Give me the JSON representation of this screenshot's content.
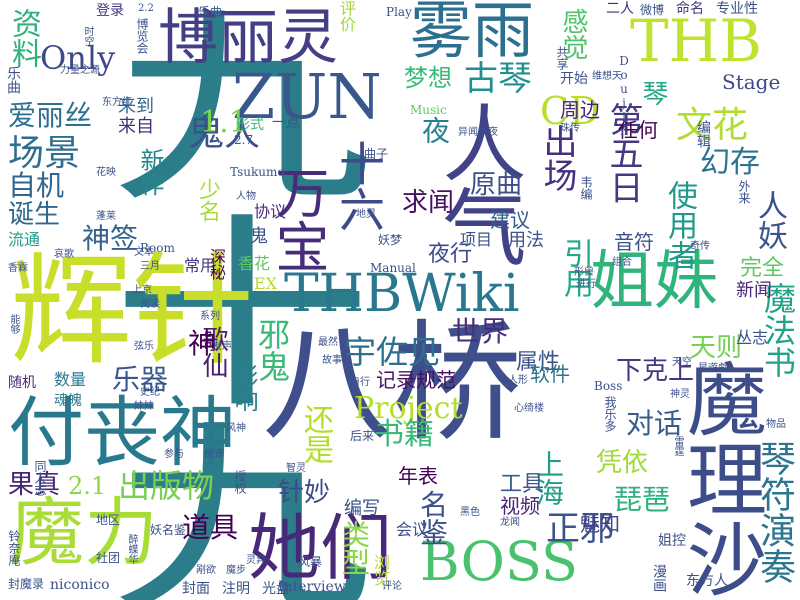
{
  "words": [
    {
      "text": "九十九",
      "color": "#2c7d8a"
    },
    {
      "text": "辉针",
      "color": "#c8de2b"
    },
    {
      "text": "八桥",
      "color": "#3f4f8c"
    },
    {
      "text": "付丧神",
      "color": "#29798e"
    },
    {
      "text": "魔力",
      "color": "#a9dc36"
    },
    {
      "text": "她们",
      "color": "#482878"
    },
    {
      "text": "博丽灵",
      "color": "#433e85"
    },
    {
      "text": "雾雨",
      "color": "#2d6f8e"
    },
    {
      "text": "ZUN",
      "color": "#38588c"
    },
    {
      "text": "THB",
      "color": "#bde32d"
    },
    {
      "text": "THBWiki",
      "color": "#2a788e"
    },
    {
      "text": "姐妹",
      "color": "#2fb47c"
    },
    {
      "text": "魔理沙",
      "color": "#3d4d8a"
    },
    {
      "text": "BOSS",
      "color": "#4ac16d"
    },
    {
      "text": "万宝",
      "color": "#472c7a"
    },
    {
      "text": "十六",
      "color": "#3e4a89"
    },
    {
      "text": "人气",
      "color": "#414287"
    },
    {
      "text": "宇佐见",
      "color": "#2e6e8e"
    },
    {
      "text": "琴",
      "color": "#22a785"
    },
    {
      "text": "Project",
      "color": "#b5de2b"
    },
    {
      "text": "Only",
      "color": "#3f4889"
    },
    {
      "text": "鬼人",
      "color": "#3b518b"
    },
    {
      "text": "邪鬼",
      "color": "#3aba76"
    },
    {
      "text": "资料",
      "color": "#2db27d"
    },
    {
      "text": "感觉",
      "color": "#4ec36b"
    },
    {
      "text": "场景",
      "color": "#2e6d8e"
    },
    {
      "text": "爱丽丝",
      "color": "#2d708e"
    },
    {
      "text": "自机",
      "color": "#31668e"
    },
    {
      "text": "诞生",
      "color": "#30678d"
    },
    {
      "text": "神签",
      "color": "#33628d"
    },
    {
      "text": "新作",
      "color": "#24868e"
    },
    {
      "text": "梦想",
      "color": "#38b977"
    },
    {
      "text": "古琴",
      "color": "#218f8d"
    },
    {
      "text": "CD",
      "color": "#b8de29"
    },
    {
      "text": "文花",
      "color": "#b0dd2f"
    },
    {
      "text": "出场",
      "color": "#46307e"
    },
    {
      "text": "原曲",
      "color": "#3d4e8a"
    },
    {
      "text": "夜",
      "color": "#26818e"
    },
    {
      "text": "求闻",
      "color": "#471063"
    },
    {
      "text": "1.1",
      "color": "#7fd34e"
    },
    {
      "text": "Stage",
      "color": "#3f4788"
    },
    {
      "text": "幻存",
      "color": "#2b748e"
    },
    {
      "text": "第五日",
      "color": "#443983"
    },
    {
      "text": "使用者",
      "color": "#1f998a"
    },
    {
      "text": "人妖",
      "color": "#3a538b"
    },
    {
      "text": "世界",
      "color": "#472d7b"
    },
    {
      "text": "乐器",
      "color": "#39568c"
    },
    {
      "text": "歌仙",
      "color": "#482071"
    },
    {
      "text": "影响",
      "color": "#26828e"
    },
    {
      "text": "还是",
      "color": "#b2dd2d"
    },
    {
      "text": "书籍",
      "color": "#3aba76"
    },
    {
      "text": "出版物",
      "color": "#7ad151"
    },
    {
      "text": "果真",
      "color": "#482677"
    },
    {
      "text": "2.1",
      "color": "#8ed645"
    },
    {
      "text": "针妙",
      "color": "#3e4989"
    },
    {
      "text": "上海",
      "color": "#1f9e89"
    },
    {
      "text": "琵琶",
      "color": "#2db27d"
    },
    {
      "text": "凭依",
      "color": "#a0da39"
    },
    {
      "text": "琴符演奏",
      "color": "#2b758e"
    },
    {
      "text": "名鉴",
      "color": "#3c4f8a"
    },
    {
      "text": "正邪",
      "color": "#3a548c"
    },
    {
      "text": "道具",
      "color": "#440154"
    },
    {
      "text": "天则",
      "color": "#75d054"
    },
    {
      "text": "下克上",
      "color": "#453781"
    },
    {
      "text": "对话",
      "color": "#365c8d"
    },
    {
      "text": "魔法书",
      "color": "#20a386"
    },
    {
      "text": "引用",
      "color": "#22a884"
    },
    {
      "text": "完全",
      "color": "#5ec962"
    },
    {
      "text": "新闻",
      "color": "#472878"
    },
    {
      "text": "属性",
      "color": "#3b528b"
    },
    {
      "text": "软件",
      "color": "#2a768e"
    },
    {
      "text": "记录规范",
      "color": "#470e61"
    },
    {
      "text": "工具",
      "color": "#38598c"
    },
    {
      "text": "视频",
      "color": "#482576"
    },
    {
      "text": "魅知",
      "color": "#424186"
    },
    {
      "text": "年表",
      "color": "#440154"
    },
    {
      "text": "编写",
      "color": "#3b528b"
    },
    {
      "text": "类型",
      "color": "#8bd646"
    },
    {
      "text": "会议",
      "color": "#3e4c8a"
    },
    {
      "text": "浏览",
      "color": "#b5de2b"
    },
    {
      "text": "夜行",
      "color": "#3e4a89"
    },
    {
      "text": "神",
      "color": "#440154"
    },
    {
      "text": "建议",
      "color": "#365c8d"
    },
    {
      "text": "音符",
      "color": "#3b528b"
    },
    {
      "text": "用法",
      "color": "#3b528b"
    },
    {
      "text": "项目",
      "color": "#3b528b"
    },
    {
      "text": "周边",
      "color": "#482677"
    },
    {
      "text": "任何",
      "color": "#440154"
    },
    {
      "text": "开始",
      "color": "#3b528b"
    },
    {
      "text": "形式",
      "color": "#35b779"
    },
    {
      "text": "一点",
      "color": "#3b528b"
    },
    {
      "text": "少名",
      "color": "#a9dc36"
    },
    {
      "text": "协议",
      "color": "#482878"
    },
    {
      "text": "鬼",
      "color": "#3b528b"
    },
    {
      "text": "常用",
      "color": "#443983"
    },
    {
      "text": "香花",
      "color": "#5ec962"
    },
    {
      "text": "EX",
      "color": "#b2dd2d"
    },
    {
      "text": "深秘",
      "color": "#440154"
    },
    {
      "text": "乐曲",
      "color": "#3b528b"
    },
    {
      "text": "来到",
      "color": "#31688e"
    },
    {
      "text": "来自",
      "color": "#46307e"
    },
    {
      "text": "流通",
      "color": "#1f9e89"
    },
    {
      "text": "数量",
      "color": "#2a788e"
    },
    {
      "text": "随机",
      "color": "#482878"
    },
    {
      "text": "魂魄",
      "color": "#2a788e"
    },
    {
      "text": "登录",
      "color": "#443983"
    },
    {
      "text": "评价",
      "color": "#a0da39"
    },
    {
      "text": "Play",
      "color": "#3b528b"
    },
    {
      "text": "二人",
      "color": "#482878"
    },
    {
      "text": "微博",
      "color": "#3b528b"
    },
    {
      "text": "命名",
      "color": "#443983"
    },
    {
      "text": "专业性",
      "color": "#3b528b"
    },
    {
      "text": "Music",
      "color": "#5ec962"
    },
    {
      "text": "曲子",
      "color": "#3b528b"
    },
    {
      "text": "Doujin",
      "color": "#3b528b"
    },
    {
      "text": "Tsukumo",
      "color": "#3b528b"
    },
    {
      "text": "Manual",
      "color": "#3b528b"
    },
    {
      "text": "Room",
      "color": "#3b528b"
    },
    {
      "text": "Boss",
      "color": "#3b528b"
    },
    {
      "text": "niconico",
      "color": "#3b528b"
    },
    {
      "text": "Interview",
      "color": "#3b528b"
    },
    {
      "text": "2.2",
      "color": "#3b528b"
    },
    {
      "text": "2.7",
      "color": "#3b528b"
    },
    {
      "text": "东方红",
      "color": "#3b528b"
    },
    {
      "text": "力量之源",
      "color": "#3b528b"
    },
    {
      "text": "博览会",
      "color": "#3b528b"
    },
    {
      "text": "乐曲",
      "color": "#3b528b"
    },
    {
      "text": "花映",
      "color": "#3b528b"
    },
    {
      "text": "蓬莱",
      "color": "#3b528b"
    },
    {
      "text": "哀歌",
      "color": "#3b528b"
    },
    {
      "text": "三月",
      "color": "#3b528b"
    },
    {
      "text": "上京",
      "color": "#3b528b"
    },
    {
      "text": "阅读",
      "color": "#3b528b"
    },
    {
      "text": "系列",
      "color": "#3b528b"
    },
    {
      "text": "弦乐",
      "color": "#3b528b"
    },
    {
      "text": "香霖",
      "color": "#3b528b"
    },
    {
      "text": "能够",
      "color": "#3b528b"
    },
    {
      "text": "地区",
      "color": "#3b528b"
    },
    {
      "text": "封面",
      "color": "#3b528b"
    },
    {
      "text": "注明",
      "color": "#3b528b"
    },
    {
      "text": "光盘",
      "color": "#3b528b"
    },
    {
      "text": "社团",
      "color": "#3b528b"
    },
    {
      "text": "妖名鉴",
      "color": "#3b528b"
    },
    {
      "text": "风暴",
      "color": "#3b528b"
    },
    {
      "text": "剐欲",
      "color": "#3b528b"
    },
    {
      "text": "灵异",
      "color": "#3b528b"
    },
    {
      "text": "智灵",
      "color": "#3b528b"
    },
    {
      "text": "魔步",
      "color": "#3b528b"
    },
    {
      "text": "同人志",
      "color": "#3b528b"
    },
    {
      "text": "铃奈庵",
      "color": "#3b528b"
    },
    {
      "text": "漫画",
      "color": "#3b528b"
    },
    {
      "text": "东方人",
      "color": "#3b528b"
    },
    {
      "text": "姐控",
      "color": "#3b528b"
    },
    {
      "text": "物品",
      "color": "#3b528b"
    },
    {
      "text": "丛志",
      "color": "#3b528b"
    },
    {
      "text": "故事",
      "color": "#3b528b"
    },
    {
      "text": "最然",
      "color": "#3b528b"
    },
    {
      "text": "天空",
      "color": "#3b528b"
    },
    {
      "text": "后来",
      "color": "#3b528b"
    },
    {
      "text": "心绮楼",
      "color": "#3b528b"
    },
    {
      "text": "奇传",
      "color": "#3b528b"
    },
    {
      "text": "编辑",
      "color": "#3b528b"
    },
    {
      "text": "外来",
      "color": "#3b528b"
    },
    {
      "text": "形兽",
      "color": "#3b528b"
    },
    {
      "text": "进行",
      "color": "#3b528b"
    },
    {
      "text": "组合",
      "color": "#3b528b"
    },
    {
      "text": "维想天",
      "color": "#3b528b"
    },
    {
      "text": "珠传",
      "color": "#3b528b"
    },
    {
      "text": "异闻",
      "color": "#3b528b"
    },
    {
      "text": "永夜",
      "color": "#3b528b"
    },
    {
      "text": "韦编",
      "color": "#3b528b"
    },
    {
      "text": "妖梦",
      "color": "#3b528b"
    },
    {
      "text": "地灵",
      "color": "#3b528b"
    },
    {
      "text": "文本",
      "color": "#3b528b"
    },
    {
      "text": "人物",
      "color": "#3b528b"
    },
    {
      "text": "发声",
      "color": "#3b528b"
    },
    {
      "text": "史纪",
      "color": "#3b528b"
    },
    {
      "text": "我乐多",
      "color": "#3b528b"
    },
    {
      "text": "风神",
      "color": "#3b528b"
    },
    {
      "text": "参与",
      "color": "#3b528b"
    },
    {
      "text": "翻译",
      "color": "#3b528b"
    },
    {
      "text": "授权",
      "color": "#3b528b"
    },
    {
      "text": "黑色",
      "color": "#3b528b"
    },
    {
      "text": "评论",
      "color": "#3b528b"
    },
    {
      "text": "龙闻",
      "color": "#3b528b"
    },
    {
      "text": "雷霆",
      "color": "#3b528b"
    },
    {
      "text": "神灵",
      "color": "#3b528b"
    },
    {
      "text": "自行",
      "color": "#3b528b"
    },
    {
      "text": "人形",
      "color": "#3b528b"
    },
    {
      "text": "星遊戲",
      "color": "#3b528b"
    },
    {
      "text": "妹妹",
      "color": "#3b528b"
    },
    {
      "text": "醉蝶华",
      "color": "#3b528b"
    },
    {
      "text": "封魔录",
      "color": "#3b528b"
    },
    {
      "text": "共享",
      "color": "#3b528b"
    },
    {
      "text": "时空",
      "color": "#3b528b"
    }
  ]
}
